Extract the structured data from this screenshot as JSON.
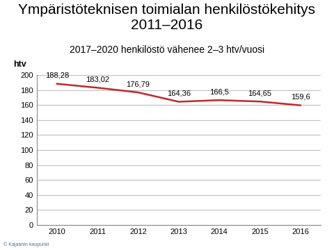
{
  "chart_data": {
    "type": "line",
    "title": "Ympäristöteknisen toimialan henkilöstökehitys 2011–2016",
    "subtitle": "2017–2020 henkilöstö vähenee 2–3 htv/vuosi",
    "y_label": "htv",
    "annotations": [
      "© Kajaanin kaupunki"
    ],
    "categories": [
      "2010",
      "2011",
      "2012",
      "2013",
      "2014",
      "2015",
      "2016"
    ],
    "values": [
      188.28,
      183.02,
      176.79,
      164.36,
      166.5,
      164.65,
      159.6
    ],
    "value_labels": [
      "188,28",
      "183,02",
      "176,79",
      "164,36",
      "166,5",
      "164,65",
      "159,6"
    ],
    "data_labels": true,
    "color": "#c0272d",
    "ylim": [
      0,
      200
    ],
    "yticks": [
      0,
      20,
      40,
      60,
      80,
      100,
      120,
      140,
      160,
      180,
      200
    ],
    "grid": true
  }
}
